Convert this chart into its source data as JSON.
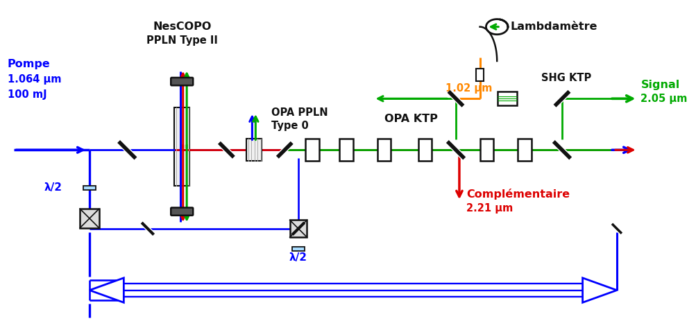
{
  "bg": "#ffffff",
  "blue": "#0000ff",
  "green": "#00aa00",
  "red": "#dd0000",
  "orange": "#ff8800",
  "black": "#111111",
  "gray_lens": "#555555",
  "figsize": [
    10.04,
    4.76
  ],
  "dpi": 100,
  "xlim": [
    0,
    100.4
  ],
  "ylim": [
    0,
    47.6
  ],
  "lw": 2.2,
  "texts": {
    "pompe1": "Pompe",
    "pompe2": "1.064 µm",
    "pompe3": "100 mJ",
    "nescopo1": "NesCOPO",
    "nescopo2": "PPLN Type II",
    "lambdametre": "Lambdamètre",
    "opa_ppln1": "OPA PPLN",
    "opa_ppln2": "Type 0",
    "opa_ktp": "OPA KTP",
    "shg_ktp": "SHG KTP",
    "signal1": "Signal",
    "signal2": "2.05 µm",
    "orange_label": "1.02 µm",
    "compl1": "Complémentaire",
    "compl2": "2.21 µm",
    "halfwave": "λ/2"
  }
}
